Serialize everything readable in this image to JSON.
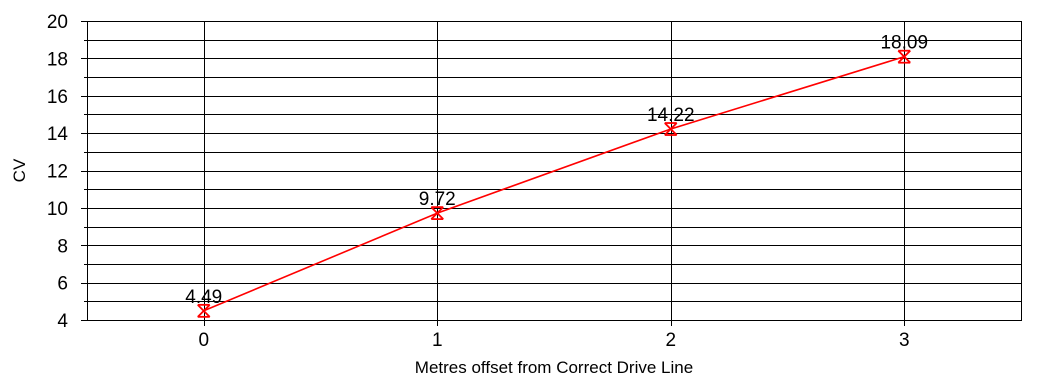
{
  "chart_data": {
    "type": "line",
    "xlabel": "Metres offset from Correct Drive Line",
    "ylabel": "CV",
    "x": [
      0,
      1,
      2,
      3
    ],
    "xlim": [
      -0.5,
      3.5
    ],
    "ylim": [
      4,
      20
    ],
    "yticks": [
      4,
      6,
      8,
      10,
      12,
      14,
      16,
      18,
      20
    ],
    "yminor_step": 1,
    "xticks": [
      0,
      1,
      2,
      3
    ],
    "grid": true,
    "legend": "none",
    "series": [
      {
        "values": [
          4.49,
          9.72,
          14.22,
          18.09
        ],
        "data_labels": [
          "4.49",
          "9.72",
          "14.22",
          "18.09"
        ],
        "color": "#ff0000",
        "marker": "x-bar"
      }
    ]
  }
}
